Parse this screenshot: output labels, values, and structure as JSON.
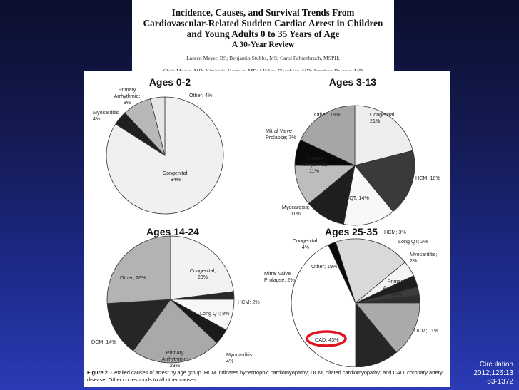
{
  "paper": {
    "title": "Incidence, Causes, and Survival Trends From Cardiovascular-Related Sudden Cardiac Arrest in Children and Young Adults 0 to 35 Years of Age",
    "title_lines": [
      "Incidence, Causes, and Survival Trends From",
      "Cardiovascular-Related Sudden Cardiac Arrest in Children",
      "and Young Adults 0 to 35 Years of Age"
    ],
    "subtitle": "A 30-Year Review",
    "authors_lines": [
      "Lauren Meyer, BS; Benjamin Stubbs, MS; Carol Fahrenbruch, MSPH;",
      "Chris Maeda, MD; Kimberly Harmon, MD; Mickey Eisenberg, MD; Jonathan Drezner, MD"
    ]
  },
  "figure": {
    "caption_label": "Figure 2.",
    "caption_text": "Detailed causes of arrest by age group. HCM indicates hypertrophic cardiomyopathy; DCM, dilated cardiomyopathy; and CAD, coronary artery disease. Other corresponds to all other causes.",
    "highlight_color": "#e0141e"
  },
  "citation": {
    "lines": [
      "Circulation",
      "2012;126:13",
      "63-1372"
    ]
  },
  "chart_data": [
    {
      "type": "pie",
      "title": "Ages 0-2",
      "series": [
        {
          "label": "Congenital; 84%",
          "value": 84,
          "color": "#f0f0f0"
        },
        {
          "label": "Myocarditis 4%",
          "value": 4,
          "color": "#202020"
        },
        {
          "label": "Primary Arrhythmia; 8%",
          "value": 8,
          "color": "#b8b8b8"
        },
        {
          "label": "Other; 4%",
          "value": 4,
          "color": "#e6e6e6"
        }
      ]
    },
    {
      "type": "pie",
      "title": "Ages 3-13",
      "series": [
        {
          "label": "Congenital; 21%",
          "value": 21,
          "color": "#eeeeee"
        },
        {
          "label": "HCM; 18%",
          "value": 18,
          "color": "#3a3a3a"
        },
        {
          "label": "Long QT; 14%",
          "value": 14,
          "color": "#f8f8f8"
        },
        {
          "label": "Myocarditis; 11%",
          "value": 11,
          "color": "#1e1e1e"
        },
        {
          "label": "Primary Arrhythmia; 11%",
          "value": 11,
          "color": "#bdbdbd"
        },
        {
          "label": "Mitral Valve Prolapse; 7%",
          "value": 7,
          "color": "#0a0a0a"
        },
        {
          "label": "Other; 18%",
          "value": 18,
          "color": "#a6a6a6"
        }
      ]
    },
    {
      "type": "pie",
      "title": "Ages 14-24",
      "series": [
        {
          "label": "Congenital; 23%",
          "value": 23,
          "color": "#f2f2f2"
        },
        {
          "label": "HCM; 2%",
          "value": 2,
          "color": "#2a2a2a"
        },
        {
          "label": "Long QT; 8%",
          "value": 8,
          "color": "#f7f7f7"
        },
        {
          "label": "Myocarditis 4%",
          "value": 4,
          "color": "#1a1a1a"
        },
        {
          "label": "Primary Arrhythmia; 23%",
          "value": 23,
          "color": "#a9a9a9"
        },
        {
          "label": "DCM; 14%",
          "value": 14,
          "color": "#262626"
        },
        {
          "label": "Other; 26%",
          "value": 26,
          "color": "#b3b3b3"
        }
      ]
    },
    {
      "type": "pie",
      "title": "Ages 25-35",
      "series": [
        {
          "label": "HCM; 3%",
          "value": 3,
          "color": "#1e1e1e"
        },
        {
          "label": "Long QT; 2%",
          "value": 2,
          "color": "#3c3c3c"
        },
        {
          "label": "Myocarditis; 2%",
          "value": 2,
          "color": "#2e2e2e"
        },
        {
          "label": "Primary Arrhythmia; 14%",
          "value": 14,
          "color": "#aaaaaa"
        },
        {
          "label": "DCM; 11%",
          "value": 11,
          "color": "#262626"
        },
        {
          "label": "CAD; 43%",
          "value": 43,
          "color": "#ffffff"
        },
        {
          "label": "Mitral Valve Prolapse; 2%",
          "value": 2,
          "color": "#0a0a0a"
        },
        {
          "label": "Other; 19%",
          "value": 19,
          "color": "#d9d9d9"
        },
        {
          "label": "Congenital; 4%",
          "value": 4,
          "color": "#f4f4f4"
        }
      ]
    }
  ]
}
